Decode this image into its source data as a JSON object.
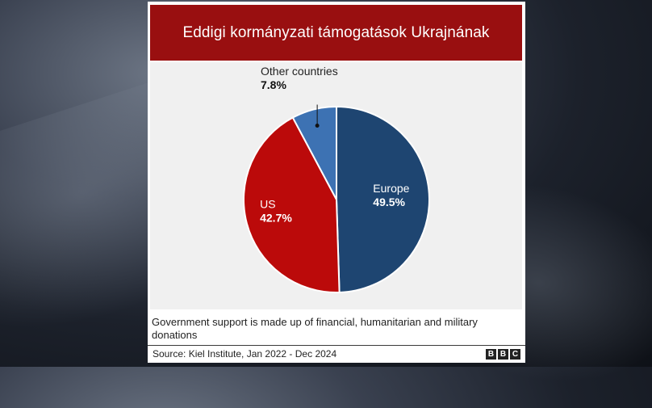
{
  "title": "Eddigi kormányzati  támogatások Ukrajnának",
  "note": "Government support is made up of financial, humanitarian and military donations",
  "source": "Source: Kiel Institute, Jan 2022 - Dec 2024",
  "logo_letters": [
    "B",
    "B",
    "C"
  ],
  "chart_data": {
    "type": "pie",
    "title": "Eddigi kormányzati  támogatások Ukrajnának",
    "slices": [
      {
        "label": "Europe",
        "value": 49.5,
        "display": "49.5%",
        "color": "#1e4571"
      },
      {
        "label": "US",
        "value": 42.7,
        "display": "42.7%",
        "color": "#bb0a0a"
      },
      {
        "label": "Other countries",
        "value": 7.8,
        "display": "7.8%",
        "color": "#3d72b3"
      }
    ],
    "start": "12 o'clock",
    "direction": "clockwise",
    "legend": "none (labels on chart)"
  }
}
